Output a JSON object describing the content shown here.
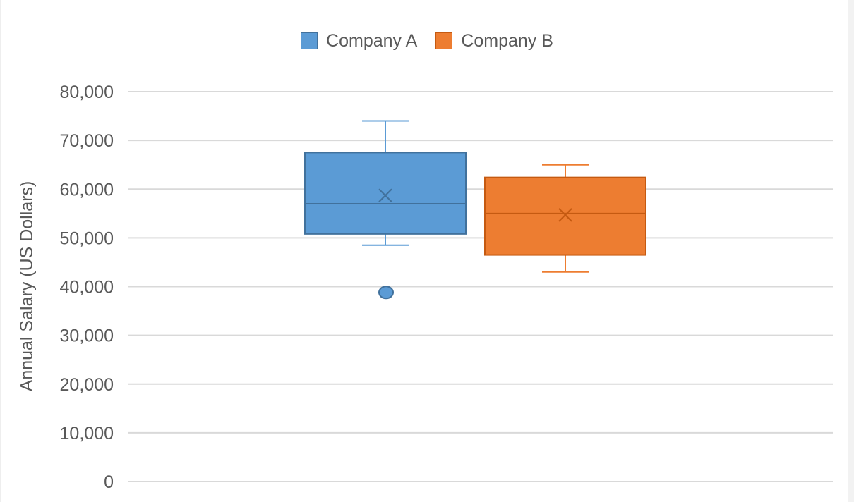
{
  "chart_data": {
    "type": "box",
    "title": "",
    "xlabel": "",
    "ylabel": "Annual Salary (US Dollars)",
    "ylim": [
      0,
      80000
    ],
    "yticks": [
      0,
      10000,
      20000,
      30000,
      40000,
      50000,
      60000,
      70000,
      80000
    ],
    "ytick_labels": [
      "0",
      "10,000",
      "20,000",
      "30,000",
      "40,000",
      "50,000",
      "60,000",
      "70,000",
      "80,000"
    ],
    "grid": true,
    "legend_position": "top-center",
    "series": [
      {
        "name": "Company A",
        "color": "#5b9bd5",
        "stroke": "#41719c",
        "whisker_low": 48500,
        "q1": 50800,
        "median": 57000,
        "q3": 67500,
        "whisker_high": 74000,
        "mean": 58700,
        "outliers": [
          38800
        ]
      },
      {
        "name": "Company B",
        "color": "#ed7d31",
        "stroke": "#c55a11",
        "whisker_low": 43000,
        "q1": 46500,
        "median": 55000,
        "q3": 62400,
        "whisker_high": 65000,
        "mean": 54700,
        "outliers": []
      }
    ]
  }
}
